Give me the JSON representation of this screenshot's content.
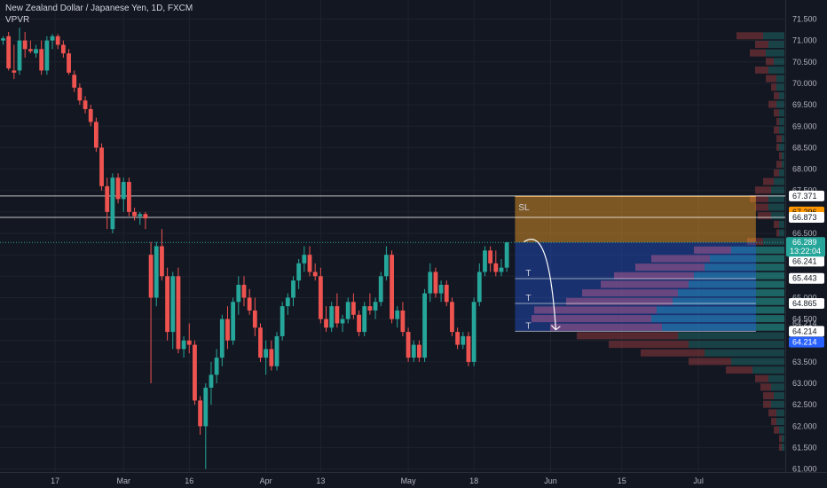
{
  "header": {
    "title": "New Zealand Dollar / Japanese Yen, 1D, FXCM",
    "indicator": "VPVR"
  },
  "colors": {
    "background": "#131722",
    "up": "#26a69a",
    "down": "#ef5350",
    "grid": "#1e222d",
    "stop_zone": "#ffa726",
    "target_zone": "#2962ff",
    "last_price_bg": "#26a69a"
  },
  "chart_data": {
    "type": "candlestick",
    "title": "New Zealand Dollar / Japanese Yen, 1D, FXCM",
    "ylim": [
      61.0,
      71.8
    ],
    "y_ticks": [
      "71.500",
      "71.000",
      "70.500",
      "70.000",
      "69.500",
      "69.000",
      "68.500",
      "68.000",
      "67.500",
      "67.000",
      "66.500",
      "66.000",
      "65.500",
      "65.000",
      "64.500",
      "64.000",
      "63.500",
      "63.000",
      "62.500",
      "62.000",
      "61.500",
      "61.000"
    ],
    "y_tick_values": [
      71.5,
      71.0,
      70.5,
      70.0,
      69.5,
      69.0,
      68.5,
      68.0,
      67.5,
      67.0,
      66.5,
      66.0,
      65.5,
      65.0,
      64.5,
      64.0,
      63.5,
      63.0,
      62.5,
      62.0,
      61.5,
      61.0
    ],
    "x_tick_labels": [
      "17",
      "Mar",
      "16",
      "Apr",
      "13",
      "May",
      "18",
      "Jun",
      "15",
      "Jul"
    ],
    "x_tick_slots": [
      9.5,
      22,
      34,
      48,
      58,
      74,
      86,
      100,
      113,
      127
    ],
    "candles": [
      {
        "o": 71.0,
        "h": 71.1,
        "l": 70.9,
        "c": 71.05
      },
      {
        "o": 71.1,
        "h": 71.2,
        "l": 70.3,
        "c": 70.35
      },
      {
        "o": 70.3,
        "h": 70.9,
        "l": 70.1,
        "c": 70.25
      },
      {
        "o": 70.3,
        "h": 71.3,
        "l": 70.2,
        "c": 71.0
      },
      {
        "o": 71.0,
        "h": 71.2,
        "l": 70.6,
        "c": 70.8
      },
      {
        "o": 70.8,
        "h": 71.0,
        "l": 70.7,
        "c": 70.75
      },
      {
        "o": 70.7,
        "h": 70.9,
        "l": 70.6,
        "c": 70.8
      },
      {
        "o": 70.8,
        "h": 71.0,
        "l": 70.2,
        "c": 70.3
      },
      {
        "o": 70.3,
        "h": 71.1,
        "l": 70.2,
        "c": 71.0
      },
      {
        "o": 71.0,
        "h": 71.15,
        "l": 70.8,
        "c": 71.1
      },
      {
        "o": 71.1,
        "h": 71.15,
        "l": 70.8,
        "c": 70.9
      },
      {
        "o": 70.9,
        "h": 71.0,
        "l": 70.6,
        "c": 70.7
      },
      {
        "o": 70.7,
        "h": 70.8,
        "l": 70.2,
        "c": 70.25
      },
      {
        "o": 70.2,
        "h": 70.3,
        "l": 69.8,
        "c": 69.9
      },
      {
        "o": 69.9,
        "h": 70.0,
        "l": 69.5,
        "c": 69.6
      },
      {
        "o": 69.6,
        "h": 69.7,
        "l": 69.3,
        "c": 69.4
      },
      {
        "o": 69.4,
        "h": 69.5,
        "l": 69.0,
        "c": 69.1
      },
      {
        "o": 69.1,
        "h": 69.2,
        "l": 68.4,
        "c": 68.5
      },
      {
        "o": 68.5,
        "h": 68.6,
        "l": 67.5,
        "c": 67.6
      },
      {
        "o": 67.6,
        "h": 67.8,
        "l": 66.6,
        "c": 67.0
      },
      {
        "o": 66.6,
        "h": 67.9,
        "l": 66.5,
        "c": 67.8
      },
      {
        "o": 67.8,
        "h": 67.9,
        "l": 67.2,
        "c": 67.3
      },
      {
        "o": 67.3,
        "h": 67.8,
        "l": 67.0,
        "c": 67.7
      },
      {
        "o": 67.7,
        "h": 67.8,
        "l": 66.9,
        "c": 67.0
      },
      {
        "o": 67.0,
        "h": 67.1,
        "l": 66.8,
        "c": 66.9
      },
      {
        "o": 66.9,
        "h": 67.0,
        "l": 66.7,
        "c": 66.95
      },
      {
        "o": 66.95,
        "h": 67.0,
        "l": 66.6,
        "c": 66.85
      },
      {
        "o": 66.0,
        "h": 66.3,
        "l": 63.0,
        "c": 65.0
      },
      {
        "o": 65.0,
        "h": 66.3,
        "l": 64.8,
        "c": 66.2
      },
      {
        "o": 66.2,
        "h": 66.6,
        "l": 65.4,
        "c": 65.5
      },
      {
        "o": 65.5,
        "h": 65.7,
        "l": 64.0,
        "c": 64.2
      },
      {
        "o": 64.2,
        "h": 65.6,
        "l": 63.8,
        "c": 65.5
      },
      {
        "o": 65.5,
        "h": 65.7,
        "l": 63.7,
        "c": 63.8
      },
      {
        "o": 63.8,
        "h": 64.1,
        "l": 63.6,
        "c": 64.0
      },
      {
        "o": 64.0,
        "h": 64.4,
        "l": 63.7,
        "c": 63.9
      },
      {
        "o": 63.9,
        "h": 64.0,
        "l": 62.5,
        "c": 62.6
      },
      {
        "o": 62.6,
        "h": 62.7,
        "l": 61.8,
        "c": 62.0
      },
      {
        "o": 62.0,
        "h": 63.0,
        "l": 61.0,
        "c": 62.9
      },
      {
        "o": 62.9,
        "h": 63.5,
        "l": 62.5,
        "c": 63.2
      },
      {
        "o": 63.2,
        "h": 63.8,
        "l": 63.0,
        "c": 63.6
      },
      {
        "o": 63.6,
        "h": 64.6,
        "l": 63.4,
        "c": 64.5
      },
      {
        "o": 64.5,
        "h": 64.8,
        "l": 63.8,
        "c": 64.0
      },
      {
        "o": 64.0,
        "h": 65.0,
        "l": 63.9,
        "c": 64.9
      },
      {
        "o": 64.9,
        "h": 65.5,
        "l": 64.6,
        "c": 65.3
      },
      {
        "o": 65.3,
        "h": 65.5,
        "l": 64.8,
        "c": 65.0
      },
      {
        "o": 65.0,
        "h": 65.2,
        "l": 64.6,
        "c": 64.7
      },
      {
        "o": 64.7,
        "h": 65.0,
        "l": 64.1,
        "c": 64.3
      },
      {
        "o": 64.3,
        "h": 64.4,
        "l": 63.5,
        "c": 63.6
      },
      {
        "o": 63.6,
        "h": 64.0,
        "l": 63.2,
        "c": 63.8
      },
      {
        "o": 63.8,
        "h": 64.0,
        "l": 63.3,
        "c": 63.4
      },
      {
        "o": 63.4,
        "h": 64.2,
        "l": 63.3,
        "c": 64.1
      },
      {
        "o": 64.1,
        "h": 64.9,
        "l": 64.0,
        "c": 64.8
      },
      {
        "o": 64.8,
        "h": 65.1,
        "l": 64.6,
        "c": 65.0
      },
      {
        "o": 65.0,
        "h": 65.5,
        "l": 64.8,
        "c": 65.4
      },
      {
        "o": 65.4,
        "h": 65.9,
        "l": 65.2,
        "c": 65.8
      },
      {
        "o": 65.8,
        "h": 66.2,
        "l": 65.6,
        "c": 66.0
      },
      {
        "o": 66.0,
        "h": 66.2,
        "l": 65.5,
        "c": 65.6
      },
      {
        "o": 65.6,
        "h": 65.8,
        "l": 65.4,
        "c": 65.5
      },
      {
        "o": 65.5,
        "h": 65.7,
        "l": 64.4,
        "c": 64.5
      },
      {
        "o": 64.5,
        "h": 64.8,
        "l": 64.2,
        "c": 64.3
      },
      {
        "o": 64.3,
        "h": 64.9,
        "l": 64.2,
        "c": 64.8
      },
      {
        "o": 64.8,
        "h": 65.1,
        "l": 64.3,
        "c": 64.4
      },
      {
        "o": 64.4,
        "h": 64.6,
        "l": 64.2,
        "c": 64.5
      },
      {
        "o": 64.5,
        "h": 65.0,
        "l": 64.4,
        "c": 64.9
      },
      {
        "o": 64.9,
        "h": 65.1,
        "l": 64.5,
        "c": 64.6
      },
      {
        "o": 64.6,
        "h": 64.7,
        "l": 64.1,
        "c": 64.2
      },
      {
        "o": 64.2,
        "h": 64.9,
        "l": 64.1,
        "c": 64.8
      },
      {
        "o": 64.8,
        "h": 65.1,
        "l": 64.6,
        "c": 64.7
      },
      {
        "o": 64.7,
        "h": 65.0,
        "l": 64.5,
        "c": 64.9
      },
      {
        "o": 64.9,
        "h": 65.6,
        "l": 64.8,
        "c": 65.5
      },
      {
        "o": 65.5,
        "h": 66.2,
        "l": 65.4,
        "c": 66.0
      },
      {
        "o": 66.0,
        "h": 66.1,
        "l": 64.4,
        "c": 64.5
      },
      {
        "o": 64.5,
        "h": 64.8,
        "l": 64.3,
        "c": 64.7
      },
      {
        "o": 64.7,
        "h": 64.9,
        "l": 64.1,
        "c": 64.2
      },
      {
        "o": 64.2,
        "h": 64.3,
        "l": 63.5,
        "c": 63.6
      },
      {
        "o": 63.6,
        "h": 64.0,
        "l": 63.5,
        "c": 63.9
      },
      {
        "o": 63.9,
        "h": 64.0,
        "l": 63.5,
        "c": 63.6
      },
      {
        "o": 63.6,
        "h": 65.2,
        "l": 63.5,
        "c": 65.1
      },
      {
        "o": 65.1,
        "h": 65.8,
        "l": 64.9,
        "c": 65.6
      },
      {
        "o": 65.6,
        "h": 65.7,
        "l": 65.0,
        "c": 65.1
      },
      {
        "o": 65.1,
        "h": 65.4,
        "l": 64.9,
        "c": 65.3
      },
      {
        "o": 65.3,
        "h": 65.4,
        "l": 64.8,
        "c": 64.9
      },
      {
        "o": 64.9,
        "h": 65.0,
        "l": 64.1,
        "c": 64.2
      },
      {
        "o": 64.2,
        "h": 64.3,
        "l": 63.8,
        "c": 63.9
      },
      {
        "o": 63.9,
        "h": 64.2,
        "l": 63.8,
        "c": 64.1
      },
      {
        "o": 64.1,
        "h": 64.2,
        "l": 63.4,
        "c": 63.5
      },
      {
        "o": 63.5,
        "h": 65.0,
        "l": 63.4,
        "c": 64.9
      },
      {
        "o": 64.9,
        "h": 65.8,
        "l": 64.8,
        "c": 65.6
      },
      {
        "o": 65.6,
        "h": 66.2,
        "l": 65.5,
        "c": 66.1
      },
      {
        "o": 66.1,
        "h": 66.2,
        "l": 65.6,
        "c": 65.8
      },
      {
        "o": 65.8,
        "h": 66.1,
        "l": 65.5,
        "c": 65.6
      },
      {
        "o": 65.6,
        "h": 65.9,
        "l": 65.5,
        "c": 65.7
      },
      {
        "o": 65.7,
        "h": 66.3,
        "l": 65.6,
        "c": 66.29
      }
    ],
    "last_price": "66.289",
    "countdown": "13:22:04",
    "price_tags": [
      {
        "label": "67.371",
        "value": 67.371,
        "bg": "#ffffff",
        "fg": "#131722"
      },
      {
        "label": "67.296",
        "value": 67.0,
        "bg": "#ff9800",
        "fg": "#131722"
      },
      {
        "label": "66.873",
        "value": 66.873,
        "bg": "#ffffff",
        "fg": "#131722"
      },
      {
        "label": "66.241",
        "value": 65.85,
        "bg": "#ffffff",
        "fg": "#131722"
      },
      {
        "label": "65.443",
        "value": 65.45,
        "bg": "#ffffff",
        "fg": "#131722"
      },
      {
        "label": "64.865",
        "value": 64.865,
        "bg": "#ffffff",
        "fg": "#131722"
      },
      {
        "label": "64.214",
        "value": 64.214,
        "bg": "#ffffff",
        "fg": "#131722"
      },
      {
        "label": "64.214",
        "value": 63.96,
        "bg": "#2962ff",
        "fg": "#ffffff"
      }
    ],
    "axis_labels": [
      {
        "label": "66.241",
        "value": 66.02
      },
      {
        "label": "64.214",
        "value": 64.4
      }
    ],
    "levels": [
      67.371,
      66.873
    ],
    "position": {
      "entry": 66.289,
      "stop": 67.371,
      "target": 64.214,
      "start_slot": 93.5,
      "end_slot": 137.5,
      "stop_label": "SL",
      "targets": [
        {
          "label": "T",
          "value": 65.443
        },
        {
          "label": "T",
          "value": 64.865
        },
        {
          "label": "T",
          "value": 64.214
        }
      ]
    },
    "volume_profile": [
      {
        "price": 71.1,
        "up": 0.08,
        "down": 0.1
      },
      {
        "price": 70.9,
        "up": 0.06,
        "down": 0.05
      },
      {
        "price": 70.7,
        "up": 0.07,
        "down": 0.06
      },
      {
        "price": 70.5,
        "up": 0.04,
        "down": 0.03
      },
      {
        "price": 70.3,
        "up": 0.06,
        "down": 0.05
      },
      {
        "price": 70.1,
        "up": 0.03,
        "down": 0.04
      },
      {
        "price": 69.9,
        "up": 0.03,
        "down": 0.02
      },
      {
        "price": 69.7,
        "up": 0.02,
        "down": 0.02
      },
      {
        "price": 69.5,
        "up": 0.03,
        "down": 0.03
      },
      {
        "price": 69.3,
        "up": 0.02,
        "down": 0.02
      },
      {
        "price": 69.1,
        "up": 0.02,
        "down": 0.01
      },
      {
        "price": 68.9,
        "up": 0.02,
        "down": 0.02
      },
      {
        "price": 68.7,
        "up": 0.01,
        "down": 0.02
      },
      {
        "price": 68.5,
        "up": 0.02,
        "down": 0.01
      },
      {
        "price": 68.3,
        "up": 0.01,
        "down": 0.01
      },
      {
        "price": 68.1,
        "up": 0.01,
        "down": 0.02
      },
      {
        "price": 67.9,
        "up": 0.02,
        "down": 0.02
      },
      {
        "price": 67.7,
        "up": 0.04,
        "down": 0.04
      },
      {
        "price": 67.5,
        "up": 0.05,
        "down": 0.06
      },
      {
        "price": 67.3,
        "up": 0.06,
        "down": 0.07
      },
      {
        "price": 67.1,
        "up": 0.06,
        "down": 0.05
      },
      {
        "price": 66.9,
        "up": 0.05,
        "down": 0.05
      },
      {
        "price": 66.7,
        "up": 0.02,
        "down": 0.02
      },
      {
        "price": 66.5,
        "up": 0.02,
        "down": 0.01
      },
      {
        "price": 66.3,
        "up": 0.08,
        "down": 0.06
      },
      {
        "price": 66.1,
        "up": 0.2,
        "down": 0.14
      },
      {
        "price": 65.9,
        "up": 0.28,
        "down": 0.22
      },
      {
        "price": 65.7,
        "up": 0.3,
        "down": 0.26
      },
      {
        "price": 65.5,
        "up": 0.34,
        "down": 0.3
      },
      {
        "price": 65.3,
        "up": 0.36,
        "down": 0.33
      },
      {
        "price": 65.1,
        "up": 0.4,
        "down": 0.36
      },
      {
        "price": 64.9,
        "up": 0.42,
        "down": 0.4
      },
      {
        "price": 64.7,
        "up": 0.48,
        "down": 0.46
      },
      {
        "price": 64.5,
        "up": 0.5,
        "down": 0.45
      },
      {
        "price": 64.3,
        "up": 0.46,
        "down": 0.42
      },
      {
        "price": 64.1,
        "up": 0.4,
        "down": 0.38
      },
      {
        "price": 63.9,
        "up": 0.36,
        "down": 0.3
      },
      {
        "price": 63.7,
        "up": 0.3,
        "down": 0.24
      },
      {
        "price": 63.5,
        "up": 0.2,
        "down": 0.16
      },
      {
        "price": 63.3,
        "up": 0.12,
        "down": 0.1
      },
      {
        "price": 63.1,
        "up": 0.06,
        "down": 0.05
      },
      {
        "price": 62.9,
        "up": 0.05,
        "down": 0.04
      },
      {
        "price": 62.7,
        "up": 0.04,
        "down": 0.04
      },
      {
        "price": 62.5,
        "up": 0.05,
        "down": 0.03
      },
      {
        "price": 62.3,
        "up": 0.03,
        "down": 0.03
      },
      {
        "price": 62.1,
        "up": 0.03,
        "down": 0.02
      },
      {
        "price": 61.9,
        "up": 0.02,
        "down": 0.02
      },
      {
        "price": 61.7,
        "up": 0.01,
        "down": 0.01
      },
      {
        "price": 61.5,
        "up": 0.01,
        "down": 0.01
      }
    ]
  }
}
